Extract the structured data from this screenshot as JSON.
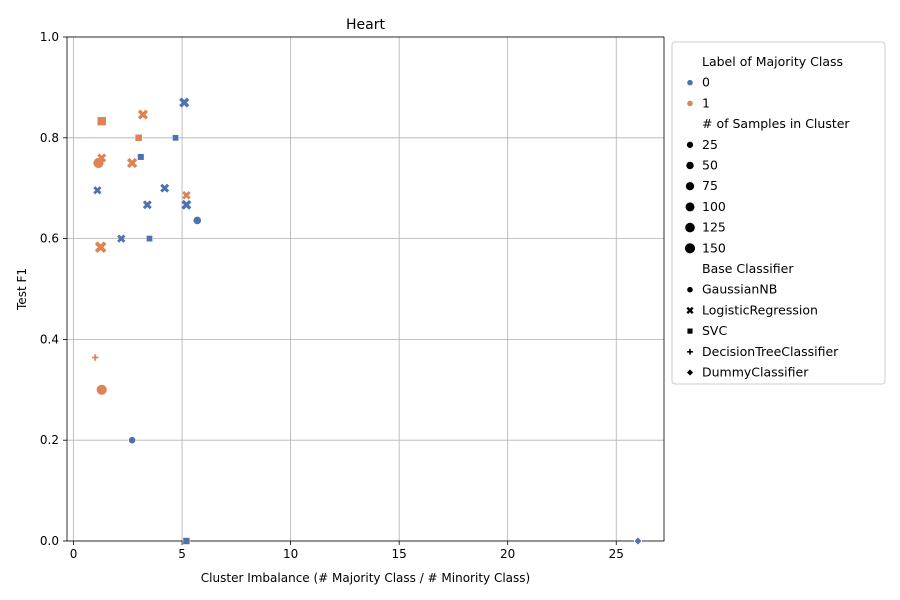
{
  "chart_data": {
    "type": "scatter",
    "title": "Heart",
    "xlabel": "Cluster Imbalance (# Majority Class / # Minority Class)",
    "ylabel": "Test F1",
    "xlim": [
      -0.3,
      27.2
    ],
    "ylim": [
      0.0,
      1.0
    ],
    "xticks": [
      0,
      5,
      10,
      15,
      20,
      25
    ],
    "yticks": [
      0.0,
      0.2,
      0.4,
      0.6,
      0.8,
      1.0
    ],
    "xtick_labels": [
      "0",
      "5",
      "10",
      "15",
      "20",
      "25"
    ],
    "ytick_labels": [
      "0.0",
      "0.2",
      "0.4",
      "0.6",
      "0.8",
      "1.0"
    ],
    "grid": true,
    "legend_position": "outside-right",
    "colors": {
      "0": "#4c72b0",
      "1": "#dd8452"
    },
    "legend": {
      "hue_title": "Label of Majority Class",
      "hue_items": [
        {
          "label": "0",
          "color": "#4c72b0"
        },
        {
          "label": "1",
          "color": "#dd8452"
        }
      ],
      "size_title": "# of Samples in Cluster",
      "size_items": [
        "25",
        "50",
        "75",
        "100",
        "125",
        "150"
      ],
      "style_title": "Base Classifier",
      "style_items": [
        {
          "label": "GaussianNB",
          "marker": "circle"
        },
        {
          "label": "LogisticRegression",
          "marker": "x"
        },
        {
          "label": "SVC",
          "marker": "square"
        },
        {
          "label": "DecisionTreeClassifier",
          "marker": "plus"
        },
        {
          "label": "DummyClassifier",
          "marker": "diamond"
        }
      ]
    },
    "points": [
      {
        "x": 1.1,
        "y": 0.696,
        "label": "0",
        "samples": 30,
        "classifier": "LogisticRegression"
      },
      {
        "x": 2.2,
        "y": 0.6,
        "label": "0",
        "samples": 30,
        "classifier": "LogisticRegression"
      },
      {
        "x": 3.4,
        "y": 0.667,
        "label": "0",
        "samples": 45,
        "classifier": "LogisticRegression"
      },
      {
        "x": 4.2,
        "y": 0.7,
        "label": "0",
        "samples": 45,
        "classifier": "LogisticRegression"
      },
      {
        "x": 5.1,
        "y": 0.87,
        "label": "0",
        "samples": 75,
        "classifier": "LogisticRegression"
      },
      {
        "x": 5.2,
        "y": 0.667,
        "label": "0",
        "samples": 70,
        "classifier": "LogisticRegression"
      },
      {
        "x": 3.1,
        "y": 0.762,
        "label": "0",
        "samples": 30,
        "classifier": "SVC"
      },
      {
        "x": 3.5,
        "y": 0.6,
        "label": "0",
        "samples": 25,
        "classifier": "SVC"
      },
      {
        "x": 4.7,
        "y": 0.8,
        "label": "0",
        "samples": 25,
        "classifier": "SVC"
      },
      {
        "x": 5.2,
        "y": 0.0,
        "label": "0",
        "samples": 40,
        "classifier": "SVC"
      },
      {
        "x": 5.7,
        "y": 0.636,
        "label": "0",
        "samples": 55,
        "classifier": "GaussianNB"
      },
      {
        "x": 2.7,
        "y": 0.2,
        "label": "0",
        "samples": 30,
        "classifier": "GaussianNB"
      },
      {
        "x": 26.0,
        "y": 0.0,
        "label": "0",
        "samples": 25,
        "classifier": "DummyClassifier"
      },
      {
        "x": 1.15,
        "y": 0.75,
        "label": "1",
        "samples": 150,
        "classifier": "GaussianNB"
      },
      {
        "x": 1.3,
        "y": 0.3,
        "label": "1",
        "samples": 150,
        "classifier": "GaussianNB"
      },
      {
        "x": 1.25,
        "y": 0.583,
        "label": "1",
        "samples": 125,
        "classifier": "LogisticRegression"
      },
      {
        "x": 1.3,
        "y": 0.76,
        "label": "1",
        "samples": 45,
        "classifier": "LogisticRegression"
      },
      {
        "x": 2.7,
        "y": 0.75,
        "label": "1",
        "samples": 80,
        "classifier": "LogisticRegression"
      },
      {
        "x": 3.2,
        "y": 0.846,
        "label": "1",
        "samples": 75,
        "classifier": "LogisticRegression"
      },
      {
        "x": 5.2,
        "y": 0.686,
        "label": "1",
        "samples": 35,
        "classifier": "LogisticRegression"
      },
      {
        "x": 1.3,
        "y": 0.833,
        "label": "1",
        "samples": 110,
        "classifier": "SVC"
      },
      {
        "x": 3.0,
        "y": 0.8,
        "label": "1",
        "samples": 45,
        "classifier": "SVC"
      },
      {
        "x": 1.0,
        "y": 0.364,
        "label": "1",
        "samples": 25,
        "classifier": "DecisionTreeClassifier"
      }
    ]
  }
}
